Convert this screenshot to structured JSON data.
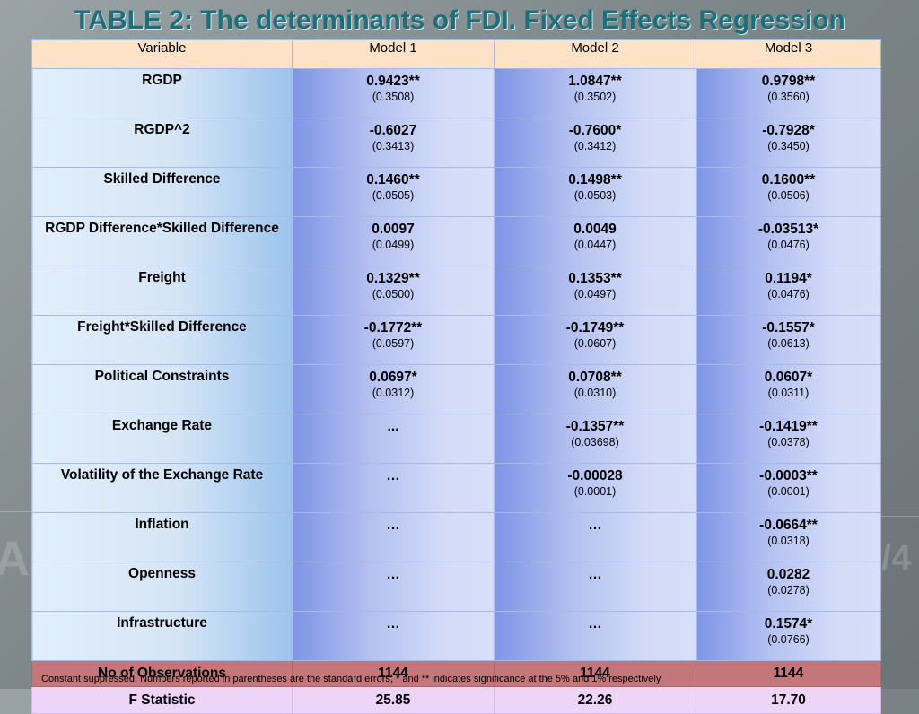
{
  "title": "TABLE 2: The determinants of FDI.  Fixed Effects Regression",
  "headers": [
    "Variable",
    "Model 1",
    "Model 2",
    "Model 3"
  ],
  "rows": [
    {
      "variable": "RGDP",
      "m1": {
        "coef": "0.9423**",
        "se": "(0.3508)"
      },
      "m2": {
        "coef": "1.0847**",
        "se": "(0.3502)"
      },
      "m3": {
        "coef": "0.9798**",
        "se": "(0.3560)"
      }
    },
    {
      "variable": "RGDP^2",
      "m1": {
        "coef": "-0.6027",
        "se": "(0.3413)"
      },
      "m2": {
        "coef": "-0.7600*",
        "se": "(0.3412)"
      },
      "m3": {
        "coef": "-0.7928*",
        "se": "(0.3450)"
      }
    },
    {
      "variable": "Skilled Difference",
      "m1": {
        "coef": "0.1460**",
        "se": "(0.0505)"
      },
      "m2": {
        "coef": "0.1498**",
        "se": "(0.0503)"
      },
      "m3": {
        "coef": "0.1600**",
        "se": "(0.0506)"
      }
    },
    {
      "variable": "RGDP Difference*Skilled Difference",
      "m1": {
        "coef": "0.0097",
        "se": "(0.0499)"
      },
      "m2": {
        "coef": "0.0049",
        "se": "(0.0447)"
      },
      "m3": {
        "coef": "-0.03513*",
        "se": "(0.0476)"
      }
    },
    {
      "variable": "Freight",
      "m1": {
        "coef": "0.1329**",
        "se": "(0.0500)"
      },
      "m2": {
        "coef": "0.1353**",
        "se": "(0.0497)"
      },
      "m3": {
        "coef": "0.1194*",
        "se": "(0.0476)"
      }
    },
    {
      "variable": "Freight*Skilled Difference",
      "m1": {
        "coef": "-0.1772**",
        "se": "(0.0597)"
      },
      "m2": {
        "coef": "-0.1749**",
        "se": "(0.0607)"
      },
      "m3": {
        "coef": "-0.1557*",
        "se": "(0.0613)"
      }
    },
    {
      "variable": "Political Constraints",
      "m1": {
        "coef": "0.0697*",
        "se": "(0.0312)"
      },
      "m2": {
        "coef": "0.0708**",
        "se": "(0.0310)"
      },
      "m3": {
        "coef": "0.0607*",
        "se": "(0.0311)"
      }
    },
    {
      "variable": "Exchange Rate",
      "m1": {
        "coef": "...",
        "se": ""
      },
      "m2": {
        "coef": "-0.1357**",
        "se": "(0.03698)"
      },
      "m3": {
        "coef": "-0.1419**",
        "se": "(0.0378)"
      }
    },
    {
      "variable": "Volatility of the Exchange Rate",
      "m1": {
        "coef": "…",
        "se": ""
      },
      "m2": {
        "coef": "-0.00028",
        "se": "(0.0001)"
      },
      "m3": {
        "coef": "-0.0003**",
        "se": "(0.0001)"
      }
    },
    {
      "variable": "Inflation",
      "m1": {
        "coef": "…",
        "se": ""
      },
      "m2": {
        "coef": "…",
        "se": ""
      },
      "m3": {
        "coef": "-0.0664**",
        "se": "(0.0318)"
      }
    },
    {
      "variable": "Openness",
      "m1": {
        "coef": "…",
        "se": ""
      },
      "m2": {
        "coef": "…",
        "se": ""
      },
      "m3": {
        "coef": "0.0282",
        "se": "(0.0278)"
      }
    },
    {
      "variable": "Infrastructure",
      "m1": {
        "coef": "…",
        "se": ""
      },
      "m2": {
        "coef": "…",
        "se": ""
      },
      "m3": {
        "coef": "0.1574*",
        "se": "(0.0766)"
      }
    }
  ],
  "observations": {
    "label": "No of Observations",
    "m1": "1144",
    "m2": "1144",
    "m3": "1144"
  },
  "fstat": {
    "label": "F Statistic",
    "m1": "25.85",
    "m2": "22.26",
    "m3": "17.70"
  },
  "footnote": "Constant suppressed. Numbers reported in parentheses are the standard errors; * and ** indicates significance at the 5% and 1% respectively"
}
